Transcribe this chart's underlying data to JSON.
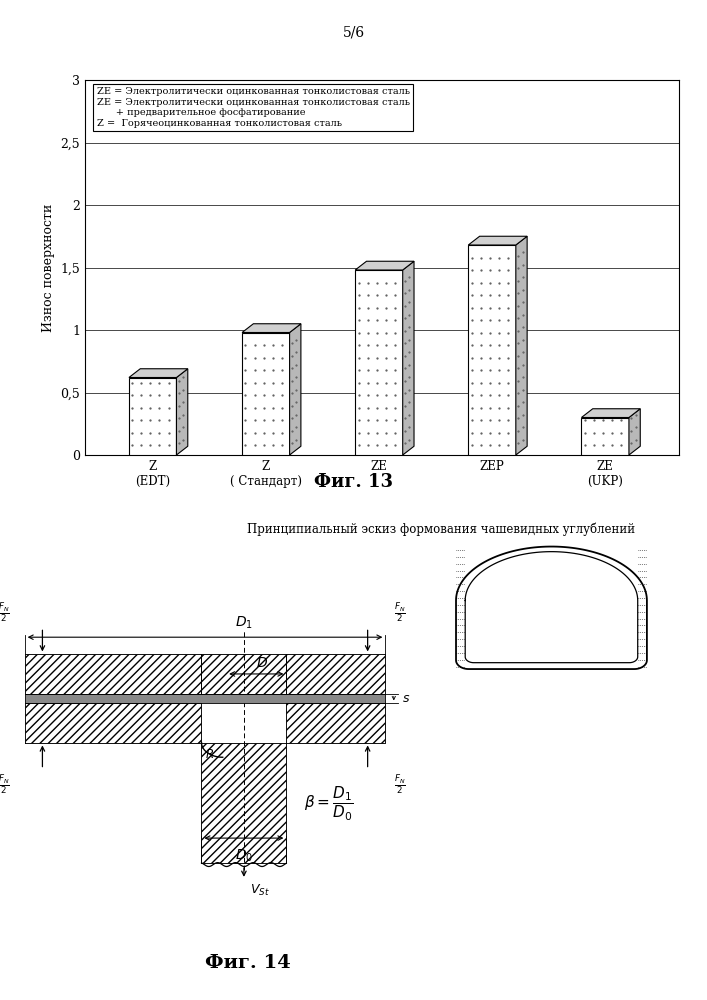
{
  "page_label": "5/6",
  "fig13_title": "Фиг. 13",
  "fig14_title": "Фиг. 14",
  "fig14_subtitle": "Принципиальный эскиз формования чашевидных углублений",
  "bar_categories": [
    "Z\n(EDT)",
    "Z\n( Стандарт)",
    "ZE",
    "ZEP",
    "ZE\n(UKP)"
  ],
  "bar_values": [
    0.62,
    0.98,
    1.48,
    1.68,
    0.3
  ],
  "ylabel": "Износ поверхности",
  "yticks": [
    0,
    0.5,
    1,
    1.5,
    2,
    2.5,
    3
  ],
  "ytick_labels": [
    "0",
    "0,5",
    "1",
    "1,5",
    "2",
    "2,5",
    "3"
  ],
  "legend_lines": [
    "ZE = Электролитически оцинкованная тонколистовая сталь",
    "ZE = Электролитически оцинкованная тонколистовая сталь",
    "      + предварительное фосфатирование",
    "Z =  Горячеоцинкованная тонколистовая сталь"
  ]
}
